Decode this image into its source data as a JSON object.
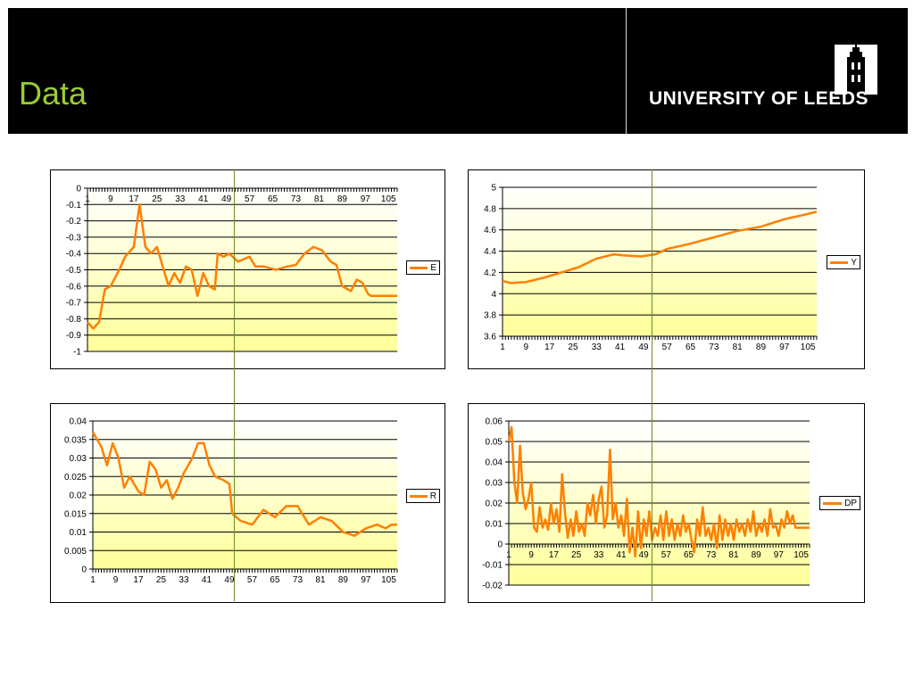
{
  "slide": {
    "title": "Data",
    "logo_text": "UNIVERSITY OF LEEDS"
  },
  "colors": {
    "series": "#FF7F00",
    "plot_gradient_top": "#FFFFFF",
    "plot_gradient_bottom": "#FFFF99",
    "title": "#9ACD32",
    "reference_line": "#6B8E23"
  },
  "chart_data": [
    {
      "id": "E",
      "type": "line",
      "legend": "E",
      "ylim": [
        -1,
        0
      ],
      "yticks": [
        "0",
        "-0.1",
        "-0.2",
        "-0.3",
        "-0.4",
        "-0.5",
        "-0.6",
        "-0.7",
        "-0.8",
        "-0.9",
        "-1"
      ],
      "xticks": [
        "1",
        "9",
        "17",
        "25",
        "33",
        "41",
        "49",
        "57",
        "65",
        "73",
        "81",
        "89",
        "97",
        "105"
      ],
      "x_axis_at_top": true,
      "n": 108,
      "keypoints": [
        [
          1,
          -0.82
        ],
        [
          3,
          -0.86
        ],
        [
          5,
          -0.82
        ],
        [
          7,
          -0.62
        ],
        [
          9,
          -0.6
        ],
        [
          12,
          -0.5
        ],
        [
          14,
          -0.42
        ],
        [
          17,
          -0.36
        ],
        [
          19,
          -0.1
        ],
        [
          21,
          -0.36
        ],
        [
          23,
          -0.4
        ],
        [
          25,
          -0.36
        ],
        [
          27,
          -0.48
        ],
        [
          29,
          -0.6
        ],
        [
          31,
          -0.52
        ],
        [
          33,
          -0.58
        ],
        [
          35,
          -0.48
        ],
        [
          37,
          -0.5
        ],
        [
          39,
          -0.66
        ],
        [
          41,
          -0.52
        ],
        [
          43,
          -0.6
        ],
        [
          45,
          -0.62
        ],
        [
          46,
          -0.4
        ],
        [
          48,
          -0.42
        ],
        [
          50,
          -0.4
        ],
        [
          53,
          -0.45
        ],
        [
          57,
          -0.42
        ],
        [
          59,
          -0.48
        ],
        [
          62,
          -0.48
        ],
        [
          66,
          -0.5
        ],
        [
          70,
          -0.48
        ],
        [
          73,
          -0.47
        ],
        [
          76,
          -0.4
        ],
        [
          79,
          -0.36
        ],
        [
          82,
          -0.38
        ],
        [
          85,
          -0.45
        ],
        [
          87,
          -0.47
        ],
        [
          89,
          -0.6
        ],
        [
          92,
          -0.63
        ],
        [
          94,
          -0.56
        ],
        [
          96,
          -0.58
        ],
        [
          98,
          -0.65
        ],
        [
          99,
          -0.66
        ]
      ]
    },
    {
      "id": "Y",
      "type": "line",
      "legend": "Y",
      "ylim": [
        3.6,
        5
      ],
      "yticks": [
        "5",
        "4.8",
        "4.6",
        "4.4",
        "4.2",
        "4",
        "3.8",
        "3.6"
      ],
      "xticks": [
        "1",
        "9",
        "17",
        "25",
        "33",
        "41",
        "49",
        "57",
        "65",
        "73",
        "81",
        "89",
        "97",
        "105"
      ],
      "x_axis_at_top": false,
      "n": 108,
      "keypoints": [
        [
          1,
          4.12
        ],
        [
          4,
          4.1
        ],
        [
          9,
          4.11
        ],
        [
          15,
          4.15
        ],
        [
          20,
          4.19
        ],
        [
          27,
          4.25
        ],
        [
          33,
          4.33
        ],
        [
          39,
          4.37
        ],
        [
          42,
          4.36
        ],
        [
          48,
          4.35
        ],
        [
          53,
          4.37
        ],
        [
          57,
          4.42
        ],
        [
          65,
          4.47
        ],
        [
          73,
          4.53
        ],
        [
          81,
          4.59
        ],
        [
          89,
          4.63
        ],
        [
          97,
          4.7
        ],
        [
          105,
          4.75
        ],
        [
          108,
          4.77
        ]
      ]
    },
    {
      "id": "R",
      "type": "line",
      "legend": "R",
      "ylim": [
        0,
        0.04
      ],
      "yticks": [
        "0.04",
        "0.035",
        "0.03",
        "0.025",
        "0.02",
        "0.015",
        "0.01",
        "0.005",
        "0"
      ],
      "xticks": [
        "1",
        "9",
        "17",
        "25",
        "33",
        "41",
        "49",
        "57",
        "65",
        "73",
        "81",
        "89",
        "97",
        "105"
      ],
      "x_axis_at_top": false,
      "n": 108,
      "keypoints": [
        [
          1,
          0.037
        ],
        [
          4,
          0.033
        ],
        [
          6,
          0.028
        ],
        [
          8,
          0.034
        ],
        [
          10,
          0.03
        ],
        [
          12,
          0.022
        ],
        [
          14,
          0.025
        ],
        [
          17,
          0.021
        ],
        [
          19,
          0.02
        ],
        [
          21,
          0.029
        ],
        [
          23,
          0.027
        ],
        [
          25,
          0.022
        ],
        [
          27,
          0.024
        ],
        [
          29,
          0.019
        ],
        [
          31,
          0.022
        ],
        [
          33,
          0.026
        ],
        [
          36,
          0.03
        ],
        [
          38,
          0.034
        ],
        [
          40,
          0.034
        ],
        [
          42,
          0.028
        ],
        [
          44,
          0.025
        ],
        [
          47,
          0.024
        ],
        [
          49,
          0.023
        ],
        [
          50,
          0.015
        ],
        [
          53,
          0.013
        ],
        [
          57,
          0.012
        ],
        [
          61,
          0.016
        ],
        [
          65,
          0.014
        ],
        [
          69,
          0.017
        ],
        [
          73,
          0.017
        ],
        [
          77,
          0.012
        ],
        [
          81,
          0.014
        ],
        [
          85,
          0.013
        ],
        [
          89,
          0.01
        ],
        [
          93,
          0.009
        ],
        [
          97,
          0.011
        ],
        [
          101,
          0.012
        ],
        [
          104,
          0.011
        ],
        [
          106,
          0.012
        ]
      ]
    },
    {
      "id": "DP",
      "type": "line",
      "legend": "DP",
      "ylim": [
        -0.02,
        0.06
      ],
      "yticks": [
        "0.06",
        "0.05",
        "0.04",
        "0.03",
        "0.02",
        "0.01",
        "0",
        "-0.01",
        "-0.02"
      ],
      "xticks": [
        "1",
        "9",
        "17",
        "25",
        "33",
        "41",
        "49",
        "57",
        "65",
        "73",
        "81",
        "89",
        "97",
        "105"
      ],
      "x_axis_at_top": false,
      "n": 108,
      "keypoints": [
        [
          1,
          0.05
        ],
        [
          2,
          0.057
        ],
        [
          3,
          0.03
        ],
        [
          4,
          0.02
        ],
        [
          5,
          0.048
        ],
        [
          6,
          0.025
        ],
        [
          7,
          0.017
        ],
        [
          8,
          0.022
        ],
        [
          9,
          0.03
        ],
        [
          10,
          0.008
        ],
        [
          11,
          0.006
        ],
        [
          12,
          0.018
        ],
        [
          13,
          0.008
        ],
        [
          14,
          0.012
        ],
        [
          15,
          0.007
        ],
        [
          16,
          0.02
        ],
        [
          17,
          0.01
        ],
        [
          18,
          0.017
        ],
        [
          19,
          0.006
        ],
        [
          20,
          0.034
        ],
        [
          21,
          0.015
        ],
        [
          22,
          0.003
        ],
        [
          23,
          0.012
        ],
        [
          24,
          0.004
        ],
        [
          25,
          0.016
        ],
        [
          26,
          0.006
        ],
        [
          27,
          0.01
        ],
        [
          28,
          0.004
        ],
        [
          29,
          0.02
        ],
        [
          30,
          0.014
        ],
        [
          31,
          0.024
        ],
        [
          32,
          0.01
        ],
        [
          33,
          0.022
        ],
        [
          34,
          0.028
        ],
        [
          35,
          0.008
        ],
        [
          36,
          0.014
        ],
        [
          37,
          0.046
        ],
        [
          38,
          0.012
        ],
        [
          39,
          0.02
        ],
        [
          40,
          0.008
        ],
        [
          41,
          0.014
        ],
        [
          42,
          0.004
        ],
        [
          43,
          0.022
        ],
        [
          44,
          -0.004
        ],
        [
          45,
          0.008
        ],
        [
          46,
          -0.006
        ],
        [
          47,
          0.016
        ],
        [
          48,
          -0.002
        ],
        [
          49,
          0.012
        ],
        [
          50,
          0.004
        ],
        [
          51,
          0.016
        ],
        [
          52,
          0.002
        ],
        [
          53,
          0.008
        ],
        [
          54,
          0.004
        ],
        [
          55,
          0.014
        ],
        [
          56,
          0.002
        ],
        [
          57,
          0.016
        ],
        [
          58,
          0.004
        ],
        [
          59,
          0.012
        ],
        [
          60,
          0.002
        ],
        [
          61,
          0.01
        ],
        [
          62,
          0.004
        ],
        [
          63,
          0.014
        ],
        [
          64,
          0.006
        ],
        [
          65,
          0.01
        ],
        [
          66,
          0.002
        ],
        [
          67,
          -0.004
        ],
        [
          68,
          0.012
        ],
        [
          69,
          0.004
        ],
        [
          70,
          0.018
        ],
        [
          71,
          0.004
        ],
        [
          72,
          0.008
        ],
        [
          73,
          0.002
        ],
        [
          74,
          0.01
        ],
        [
          75,
          -0.002
        ],
        [
          76,
          0.014
        ],
        [
          77,
          0.002
        ],
        [
          78,
          0.012
        ],
        [
          79,
          0.004
        ],
        [
          80,
          0.01
        ],
        [
          81,
          0.002
        ],
        [
          82,
          0.012
        ],
        [
          83,
          0.006
        ],
        [
          84,
          0.01
        ],
        [
          85,
          0.004
        ],
        [
          86,
          0.012
        ],
        [
          87,
          0.006
        ],
        [
          88,
          0.016
        ],
        [
          89,
          0.004
        ],
        [
          90,
          0.01
        ],
        [
          91,
          0.006
        ],
        [
          92,
          0.012
        ],
        [
          93,
          0.004
        ],
        [
          94,
          0.017
        ],
        [
          95,
          0.008
        ],
        [
          96,
          0.009
        ],
        [
          97,
          0.004
        ],
        [
          98,
          0.012
        ],
        [
          99,
          0.008
        ],
        [
          100,
          0.016
        ],
        [
          101,
          0.01
        ],
        [
          102,
          0.014
        ],
        [
          103,
          0.008
        ]
      ]
    }
  ]
}
